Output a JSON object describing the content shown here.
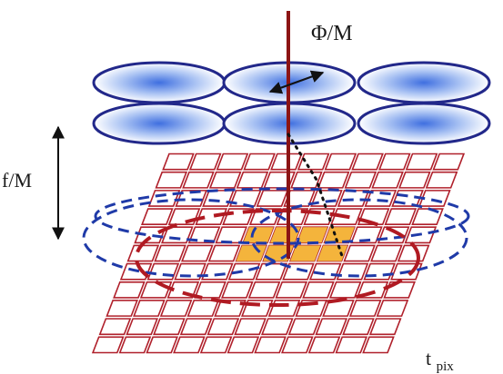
{
  "labels": {
    "phi_label": "Φ/M",
    "focal_label": "f/M",
    "pixel_label_main": "t",
    "pixel_label_sub": "pix"
  },
  "colors": {
    "lens_outline": "#22288a",
    "lens_fill_center": "#3f6fe0",
    "lens_fill_edge": "#ffffff",
    "grid_stroke": "#b0202b",
    "highlight_fill": "#f4b43c",
    "blue_dashed": "#1f3aa8",
    "red_dashed": "#b01a22",
    "optical_axis": "#8c1414",
    "text": "#1a1a1a"
  }
}
